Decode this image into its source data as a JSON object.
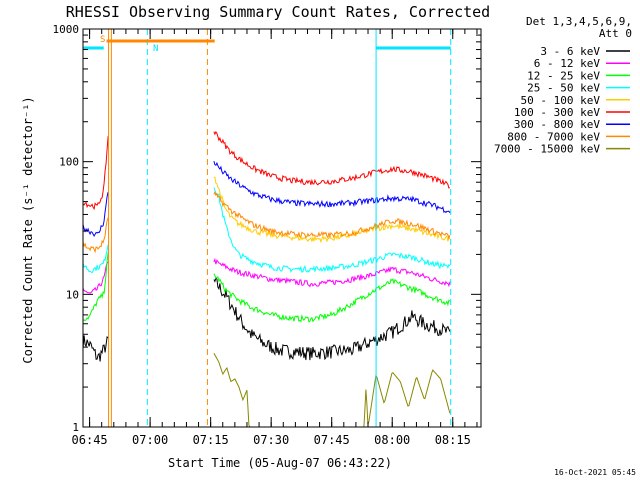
{
  "chart_data": {
    "type": "line",
    "title": "RHESSI Observing Summary Count Rates, Corrected",
    "xlabel": "Start Time (05-Aug-07 06:43:22)",
    "ylabel": "Corrected Count Rate (s⁻¹ detector⁻¹)",
    "yscale": "log",
    "xlim": [
      "06:43:22",
      "08:22:00"
    ],
    "ylim": [
      1,
      1000
    ],
    "x_ticks": [
      "06:45",
      "07:00",
      "07:15",
      "07:30",
      "07:45",
      "08:00",
      "08:15"
    ],
    "y_ticks": [
      "1",
      "10",
      "100",
      "1000"
    ],
    "legend_title": "Det 1,3,4,5,6,9,",
    "legend_subtitle": "Att 0",
    "legend_placement": "right",
    "grid": false,
    "x_unit": "minutes after 06:00",
    "series": [
      {
        "name": "3 - 6 keV",
        "color": "#000000",
        "segments": [
          {
            "x": [
              43.4,
              45,
              47,
              48.5,
              49.6
            ],
            "y": [
              4.5,
              4.2,
              3.3,
              3.8,
              4.5
            ]
          },
          {
            "x": [
              75.8,
              77,
              79,
              81,
              83,
              85,
              88,
              92,
              100,
              110,
              120,
              125,
              128,
              132,
              134.5
            ],
            "y": [
              12.5,
              11.5,
              9.5,
              7.5,
              6,
              5,
              4.3,
              3.8,
              3.6,
              3.8,
              5.2,
              6.8,
              6,
              5.5,
              5
            ]
          }
        ]
      },
      {
        "name": "6 - 12 keV",
        "color": "#ff00ff",
        "segments": [
          {
            "x": [
              43.4,
              45,
              47,
              48.5,
              49.6
            ],
            "y": [
              11,
              10,
              11,
              13,
              18
            ]
          },
          {
            "x": [
              75.8,
              77,
              79,
              81,
              85,
              90,
              95,
              100,
              105,
              110,
              115,
              120,
              125,
              130,
              134.5
            ],
            "y": [
              18,
              17,
              16,
              15,
              14,
              13,
              12.5,
              12,
              12.3,
              13,
              14,
              15.5,
              14.5,
              13,
              12
            ]
          }
        ]
      },
      {
        "name": "12 - 25 keV",
        "color": "#00ff00",
        "segments": [
          {
            "x": [
              43.4,
              45,
              47,
              48.5,
              49.6
            ],
            "y": [
              6.5,
              6.8,
              9,
              10,
              20
            ]
          },
          {
            "x": [
              75.8,
              77,
              78.5,
              80,
              82,
              85,
              90,
              95,
              100,
              105,
              110,
              115,
              120,
              125,
              130,
              134.5
            ],
            "y": [
              14,
              13,
              11,
              10,
              9,
              8,
              7,
              6.6,
              6.5,
              7,
              8.5,
              10.5,
              12.5,
              11,
              9.5,
              8.5
            ]
          }
        ]
      },
      {
        "name": "25 - 50 keV",
        "color": "#00ffff",
        "segments": [
          {
            "x": [
              43.4,
              45,
              47,
              48.5,
              49.6
            ],
            "y": [
              17,
              15,
              16,
              17,
              24
            ]
          },
          {
            "x": [
              75.8,
              77,
              78,
              79,
              80,
              81,
              82,
              84,
              86,
              90,
              95,
              100,
              105,
              110,
              115,
              120,
              125,
              130,
              134.5
            ],
            "y": [
              65,
              55,
              40,
              31,
              26,
              22,
              20,
              18.5,
              17.5,
              16,
              15.5,
              15.5,
              15.8,
              16.5,
              18,
              20,
              19,
              17,
              16
            ]
          }
        ]
      },
      {
        "name": "50 - 100 keV",
        "color": "#ffcc00",
        "segments": [
          {
            "x": [
              75.8,
              77,
              78.5,
              80,
              82,
              84,
              86,
              90,
              95,
              100,
              105,
              110,
              115,
              120,
              125,
              130,
              134.5
            ],
            "y": [
              80,
              62,
              45,
              38,
              34,
              32,
              30,
              28,
              27,
              26,
              26.5,
              28,
              31,
              33,
              31,
              28,
              26
            ]
          }
        ]
      },
      {
        "name": "100 - 300 keV",
        "color": "#ff0000",
        "segments": [
          {
            "x": [
              43.4,
              45,
              47,
              48.5,
              49.6
            ],
            "y": [
              50,
              47,
              46,
              60,
              155
            ]
          },
          {
            "x": [
              75.8,
              78,
              80,
              83,
              86,
              90,
              95,
              100,
              105,
              110,
              115,
              120,
              125,
              130,
              134.5
            ],
            "y": [
              170,
              140,
              118,
              100,
              88,
              78,
              72,
              70,
              71,
              75,
              82,
              88,
              84,
              75,
              65
            ]
          }
        ]
      },
      {
        "name": "300 - 800 keV",
        "color": "#0000ff",
        "segments": [
          {
            "x": [
              43.4,
              45,
              47,
              48.5,
              49.6
            ],
            "y": [
              32,
              30,
              28,
              35,
              60
            ]
          },
          {
            "x": [
              75.8,
              78,
              80,
              83,
              86,
              90,
              95,
              100,
              105,
              110,
              115,
              120,
              125,
              130,
              134.5
            ],
            "y": [
              100,
              84,
              74,
              64,
              57,
              52,
              49,
              48,
              48,
              49,
              51,
              53,
              52,
              47,
              42
            ]
          }
        ]
      },
      {
        "name": "800 - 7000 keV",
        "color": "#ff8800",
        "segments": [
          {
            "x": [
              43.4,
              45,
              47,
              48.5,
              49.6
            ],
            "y": [
              24,
              22,
              22,
              25,
              38
            ]
          },
          {
            "x": [
              75.8,
              78,
              80,
              83,
              86,
              90,
              95,
              100,
              105,
              110,
              115,
              120,
              125,
              130,
              134.5
            ],
            "y": [
              58,
              49,
              43,
              37,
              33,
              30,
              28.5,
              28,
              28,
              29,
              32,
              36,
              34,
              30,
              27
            ]
          }
        ]
      },
      {
        "name": "7000 - 15000 keV",
        "color": "#888800",
        "segments": [
          {
            "x": [
              75.8,
              77,
              78,
              79,
              80,
              81,
              82,
              83,
              84,
              84.5,
              85,
              86,
              88,
              90,
              100,
              110,
              113,
              113.5,
              114,
              116,
              118,
              120,
              122,
              124,
              126,
              128,
              130,
              132,
              134.5
            ],
            "y": [
              3.6,
              3.1,
              2.5,
              2.8,
              2.2,
              2.3,
              2.0,
              1.6,
              1.9,
              1.0,
              1,
              1,
              1,
              1,
              1,
              1,
              1,
              2.0,
              1.0,
              2.5,
              1.5,
              2.6,
              2.2,
              1.4,
              2.4,
              1.6,
              2.7,
              2.3,
              1.2
            ]
          }
        ]
      }
    ],
    "annotations": {
      "saa_label": "S",
      "night_label": "N",
      "saa_bar": [
        49.2,
        76.0
      ],
      "night_bars": [
        [
          43.4,
          48.5
        ],
        [
          116.0,
          134.5
        ]
      ],
      "vlines_orange_solid": [
        49.7,
        50.4
      ],
      "vlines_orange_dashed": [
        74.2
      ],
      "vlines_cyan_solid": [
        116.0
      ],
      "vlines_cyan_dashed": [
        59.3,
        134.5
      ]
    },
    "footer_stamp": "16-Oct-2021 05:45"
  }
}
